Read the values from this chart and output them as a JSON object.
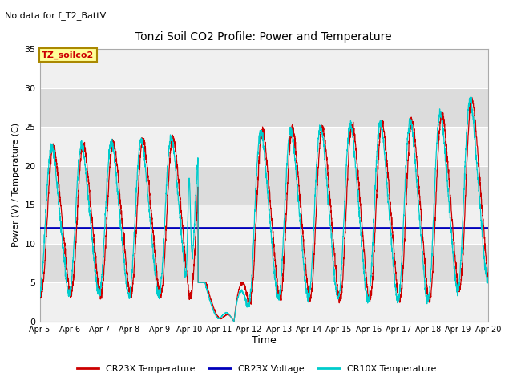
{
  "title": "Tonzi Soil CO2 Profile: Power and Temperature",
  "subtitle": "No data for f_T2_BattV",
  "xlabel": "Time",
  "ylabel": "Power (V) / Temperature (C)",
  "ylim": [
    0,
    35
  ],
  "x_tick_labels": [
    "Apr 5",
    "Apr 6",
    "Apr 7",
    "Apr 8",
    "Apr 9",
    "Apr 10",
    "Apr 11",
    "Apr 12",
    "Apr 13",
    "Apr 14",
    "Apr 15",
    "Apr 16",
    "Apr 17",
    "Apr 18",
    "Apr 19",
    "Apr 20"
  ],
  "voltage_value": 12.0,
  "plot_bg_color": "#e8e8e8",
  "band_light": "#f0f0f0",
  "band_dark": "#dcdcdc",
  "legend_label_box": "TZ_soilco2",
  "legend_items": [
    "CR23X Temperature",
    "CR23X Voltage",
    "CR10X Temperature"
  ],
  "legend_colors": [
    "#cc0000",
    "#0000bb",
    "#00cccc"
  ],
  "cr23x_color": "#cc0000",
  "cr10x_color": "#00cccc",
  "voltage_color": "#0000bb"
}
